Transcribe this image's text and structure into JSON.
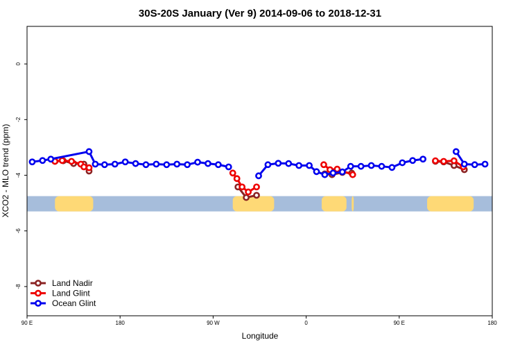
{
  "chart_data": {
    "type": "line",
    "title": "30S-20S January (Ver 9)   2014-09-06 to 2018-12-31",
    "xlabel": "Longitude",
    "ylabel": "XCO2 - MLO trend (ppm)",
    "xlim": [
      90,
      540
    ],
    "ylim": [
      -9.05,
      1.35
    ],
    "x_ticks": [
      {
        "value": 90,
        "label": "90 E"
      },
      {
        "value": 180,
        "label": "180"
      },
      {
        "value": 270,
        "label": "90 W"
      },
      {
        "value": 360,
        "label": "0"
      },
      {
        "value": 450,
        "label": "90 E"
      },
      {
        "value": 540,
        "label": "180"
      }
    ],
    "y_ticks": [
      {
        "value": 0,
        "label": "0"
      },
      {
        "value": -2,
        "label": "-2"
      },
      {
        "value": -4,
        "label": "-4"
      },
      {
        "value": -6,
        "label": "-6"
      },
      {
        "value": -8,
        "label": "-8"
      }
    ],
    "land_band": {
      "y_top": -4.75,
      "y_bottom": -5.3,
      "ocean_color": "#a6bddb",
      "land_color": "#fed976",
      "land_segments": [
        [
          117,
          154
        ],
        [
          289,
          329
        ],
        [
          375,
          399
        ],
        [
          404,
          406
        ],
        [
          477,
          522
        ]
      ]
    },
    "legend_position": "bottom-left",
    "series": [
      {
        "name": "Land Nadir",
        "color": "#8b2323",
        "segments": [
          [
            [
              117,
              -3.5
            ],
            [
              125,
              -3.48
            ],
            [
              135,
              -3.58
            ],
            [
              145,
              -3.6
            ],
            [
              150,
              -3.85
            ]
          ],
          [
            [
              294,
              -4.42
            ],
            [
              302,
              -4.8
            ],
            [
              312,
              -4.72
            ]
          ],
          [
            [
              378,
              -3.95
            ],
            [
              385,
              -3.98
            ],
            [
              395,
              -3.9
            ],
            [
              404,
              -3.92
            ]
          ],
          [
            [
              485,
              -3.5
            ],
            [
              493,
              -3.52
            ],
            [
              503,
              -3.65
            ],
            [
              513,
              -3.8
            ]
          ]
        ]
      },
      {
        "name": "Land Glint",
        "color": "#ee0000",
        "segments": [
          [
            [
              117,
              -3.5
            ],
            [
              124,
              -3.47
            ],
            [
              133,
              -3.5
            ],
            [
              142,
              -3.6
            ],
            [
              145,
              -3.7
            ],
            [
              150,
              -3.73
            ]
          ],
          [
            [
              289,
              -3.92
            ],
            [
              293,
              -4.12
            ],
            [
              298,
              -4.42
            ],
            [
              304,
              -4.6
            ],
            [
              312,
              -4.42
            ]
          ],
          [
            [
              377,
              -3.62
            ],
            [
              383,
              -3.8
            ],
            [
              390,
              -3.78
            ],
            [
              405,
              -3.98
            ]
          ],
          [
            [
              485,
              -3.48
            ],
            [
              493,
              -3.5
            ],
            [
              503,
              -3.48
            ],
            [
              512,
              -3.7
            ]
          ]
        ]
      },
      {
        "name": "Ocean Glint",
        "color": "#0000ee",
        "segments": [
          [
            [
              95,
              -3.52
            ],
            [
              105,
              -3.47
            ],
            [
              113,
              -3.42
            ],
            [
              150,
              -3.15
            ],
            [
              156,
              -3.6
            ],
            [
              165,
              -3.62
            ],
            [
              175,
              -3.6
            ],
            [
              185,
              -3.52
            ],
            [
              195,
              -3.58
            ],
            [
              205,
              -3.62
            ],
            [
              215,
              -3.6
            ],
            [
              225,
              -3.62
            ],
            [
              235,
              -3.6
            ],
            [
              245,
              -3.62
            ],
            [
              255,
              -3.53
            ],
            [
              265,
              -3.58
            ],
            [
              275,
              -3.62
            ],
            [
              285,
              -3.7
            ]
          ],
          [
            [
              314,
              -4.02
            ],
            [
              323,
              -3.62
            ],
            [
              333,
              -3.57
            ],
            [
              343,
              -3.58
            ],
            [
              353,
              -3.65
            ],
            [
              363,
              -3.65
            ],
            [
              370,
              -3.87
            ],
            [
              378,
              -3.98
            ],
            [
              386,
              -3.92
            ],
            [
              395,
              -3.88
            ],
            [
              403,
              -3.68
            ],
            [
              413,
              -3.68
            ],
            [
              423,
              -3.65
            ],
            [
              433,
              -3.68
            ],
            [
              443,
              -3.72
            ],
            [
              453,
              -3.55
            ],
            [
              463,
              -3.47
            ],
            [
              473,
              -3.42
            ]
          ],
          [
            [
              505,
              -3.15
            ],
            [
              513,
              -3.6
            ],
            [
              523,
              -3.62
            ],
            [
              533,
              -3.6
            ]
          ]
        ]
      }
    ]
  }
}
